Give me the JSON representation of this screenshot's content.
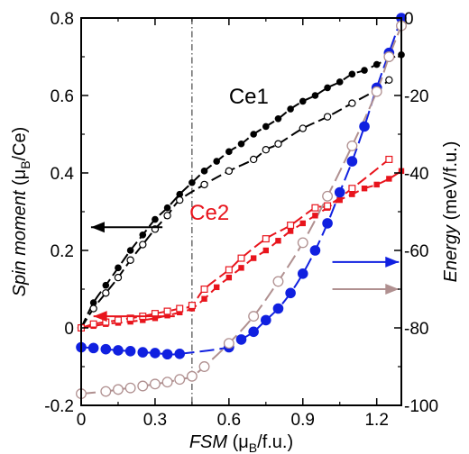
{
  "chart_data": {
    "type": "line",
    "xlabel": "FSM (μB/f.u.)",
    "ylabel_left": "Spin moment (μB/Ce)",
    "ylabel_right": "Energy (meV/f.u.)",
    "xlim": [
      0,
      1.3
    ],
    "ylim_left": [
      -0.2,
      0.8
    ],
    "ylim_right": [
      -100,
      0
    ],
    "xticks": [
      "0",
      "0.3",
      "0.6",
      "0.9",
      "1.2"
    ],
    "yticks_left": [
      "-0.2",
      "0",
      "0.2",
      "0.4",
      "0.6",
      "0.8"
    ],
    "yticks_right": [
      "-100",
      "-80",
      "-60",
      "-40",
      "-20",
      "0"
    ],
    "vline_x": 0.45,
    "colors": {
      "ce1": "#000000",
      "ce2": "#e8141c",
      "blue": "#1020e0",
      "brown": "#b09090"
    },
    "series": [
      {
        "label": "Ce1",
        "axis": "left",
        "marker": "filled-circle",
        "x": [
          0,
          0.05,
          0.1,
          0.15,
          0.2,
          0.25,
          0.3,
          0.35,
          0.4,
          0.45,
          0.5,
          0.55,
          0.6,
          0.65,
          0.7,
          0.75,
          0.8,
          0.85,
          0.9,
          0.95,
          1.0,
          1.05,
          1.1,
          1.15,
          1.2,
          1.25,
          1.3
        ],
        "y": [
          0.0,
          0.065,
          0.11,
          0.155,
          0.2,
          0.24,
          0.28,
          0.31,
          0.345,
          0.375,
          0.405,
          0.43,
          0.455,
          0.475,
          0.5,
          0.52,
          0.54,
          0.565,
          0.585,
          0.6,
          0.62,
          0.635,
          0.655,
          0.665,
          0.68,
          0.695,
          0.705
        ]
      },
      {
        "axis": "left",
        "marker": "open-circle",
        "x": [
          0,
          0.05,
          0.1,
          0.15,
          0.2,
          0.25,
          0.3,
          0.35,
          0.4,
          0.5,
          0.6,
          0.7,
          0.75,
          0.8,
          0.9,
          1.0,
          1.1,
          1.2,
          1.25
        ],
        "y": [
          0.0,
          0.05,
          0.09,
          0.13,
          0.175,
          0.215,
          0.255,
          0.29,
          0.33,
          0.37,
          0.405,
          0.435,
          0.46,
          0.475,
          0.515,
          0.545,
          0.58,
          0.615,
          0.64
        ]
      },
      {
        "label": "Ce2",
        "axis": "left",
        "marker": "filled-square",
        "x": [
          0,
          0.05,
          0.1,
          0.15,
          0.2,
          0.25,
          0.3,
          0.35,
          0.4,
          0.45,
          0.5,
          0.55,
          0.6,
          0.65,
          0.7,
          0.75,
          0.8,
          0.85,
          0.9,
          0.95,
          1.0,
          1.05,
          1.1,
          1.15,
          1.2,
          1.25,
          1.3
        ],
        "y": [
          0.0,
          0.005,
          0.01,
          0.013,
          0.016,
          0.02,
          0.025,
          0.032,
          0.04,
          0.05,
          0.075,
          0.105,
          0.13,
          0.155,
          0.18,
          0.2,
          0.225,
          0.25,
          0.27,
          0.29,
          0.31,
          0.33,
          0.345,
          0.36,
          0.37,
          0.385,
          0.405
        ]
      },
      {
        "axis": "left",
        "marker": "open-square",
        "x": [
          0,
          0.05,
          0.1,
          0.15,
          0.2,
          0.25,
          0.3,
          0.35,
          0.4,
          0.45,
          0.5,
          0.6,
          0.65,
          0.75,
          0.85,
          0.95,
          1.0,
          1.1,
          1.25
        ],
        "y": [
          0.0,
          0.01,
          0.015,
          0.02,
          0.025,
          0.03,
          0.037,
          0.043,
          0.05,
          0.058,
          0.1,
          0.15,
          0.18,
          0.23,
          0.265,
          0.31,
          0.315,
          0.36,
          0.435
        ]
      },
      {
        "axis": "right",
        "marker": "filled-circle-large",
        "x": [
          0,
          0.05,
          0.1,
          0.15,
          0.2,
          0.25,
          0.3,
          0.35,
          0.4,
          0.6,
          0.65,
          0.7,
          0.75,
          0.8,
          0.85,
          0.9,
          0.95,
          1.0,
          1.05,
          1.1,
          1.15,
          1.2,
          1.25,
          1.3
        ],
        "y": [
          -85,
          -85.2,
          -85.5,
          -85.8,
          -86,
          -86.3,
          -86.5,
          -86.8,
          -86.7,
          -85,
          -83,
          -81,
          -78,
          -75,
          -71,
          -66,
          -60,
          -53,
          -45,
          -37,
          -28,
          -18,
          -9,
          0
        ]
      },
      {
        "axis": "right",
        "marker": "open-circle-large",
        "x": [
          0,
          0.1,
          0.15,
          0.2,
          0.25,
          0.3,
          0.35,
          0.4,
          0.45,
          0.5,
          0.6,
          0.7,
          0.8,
          0.9,
          1.0,
          1.1,
          1.2,
          1.25,
          1.3
        ],
        "y": [
          -97,
          -96.4,
          -95.9,
          -95.5,
          -95,
          -94.5,
          -94,
          -93.3,
          -92.5,
          -90,
          -84,
          -77,
          -68,
          -58,
          -46,
          -33,
          -19,
          -10,
          -2
        ]
      }
    ],
    "annotations": [
      {
        "type": "arrow",
        "color": "#000000",
        "direction": "left",
        "points_to": "left-axis"
      },
      {
        "type": "arrow",
        "color": "#e8141c",
        "direction": "left",
        "points_to": "left-axis"
      },
      {
        "type": "arrow",
        "color": "#1020e0",
        "direction": "right",
        "points_to": "right-axis"
      },
      {
        "type": "arrow",
        "color": "#b09090",
        "direction": "right",
        "points_to": "right-axis"
      }
    ]
  }
}
